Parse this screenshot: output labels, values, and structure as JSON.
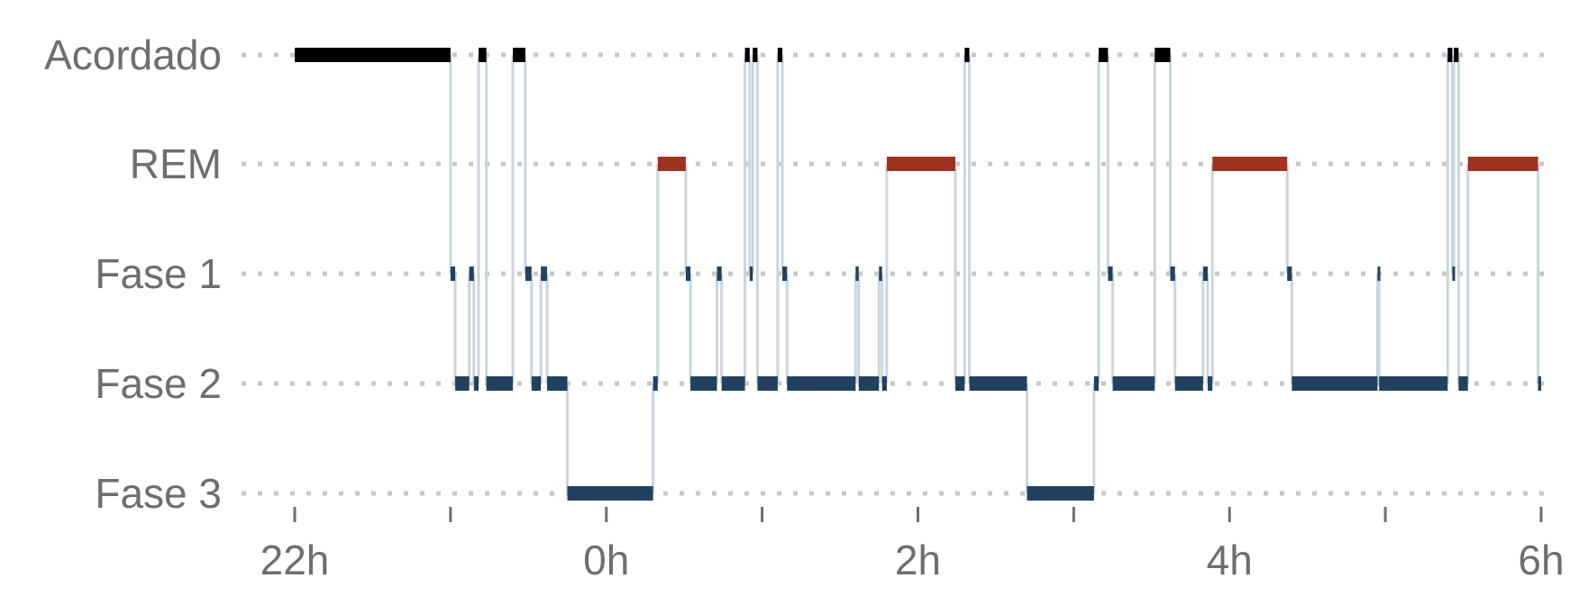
{
  "chart_data": {
    "type": "hypnogram",
    "title": "",
    "xlabel": "",
    "ylabel": "",
    "x_unit": "hours (relative to midnight)",
    "xlim": [
      -2,
      6
    ],
    "x_ticks": [
      {
        "value": -2,
        "label": "22h"
      },
      {
        "value": -1,
        "label": ""
      },
      {
        "value": 0,
        "label": "0h"
      },
      {
        "value": 1,
        "label": ""
      },
      {
        "value": 2,
        "label": "2h"
      },
      {
        "value": 3,
        "label": ""
      },
      {
        "value": 4,
        "label": "4h"
      },
      {
        "value": 5,
        "label": ""
      },
      {
        "value": 6,
        "label": "6h"
      }
    ],
    "stages": [
      "Acordado",
      "REM",
      "Fase 1",
      "Fase 2",
      "Fase 3"
    ],
    "grid": "dotted horizontal",
    "colors": {
      "Acordado": "#000000",
      "REM": "#a03222",
      "Fase 1": "#22415e",
      "Fase 2": "#22415e",
      "Fase 3": "#22415e",
      "transition": "#c9d6df",
      "grid": "#c8c8c8",
      "text": "#6e6e6e"
    },
    "segments": [
      {
        "stage": "Acordado",
        "start": -2.0,
        "end": -1.0
      },
      {
        "stage": "Fase 1",
        "start": -1.0,
        "end": -0.97
      },
      {
        "stage": "Fase 2",
        "start": -0.97,
        "end": -0.88
      },
      {
        "stage": "Fase 1",
        "start": -0.88,
        "end": -0.85
      },
      {
        "stage": "Fase 2",
        "start": -0.85,
        "end": -0.82
      },
      {
        "stage": "Acordado",
        "start": -0.82,
        "end": -0.77
      },
      {
        "stage": "Fase 2",
        "start": -0.77,
        "end": -0.6
      },
      {
        "stage": "Acordado",
        "start": -0.6,
        "end": -0.52
      },
      {
        "stage": "Fase 1",
        "start": -0.52,
        "end": -0.48
      },
      {
        "stage": "Fase 2",
        "start": -0.48,
        "end": -0.42
      },
      {
        "stage": "Fase 1",
        "start": -0.42,
        "end": -0.38
      },
      {
        "stage": "Fase 2",
        "start": -0.38,
        "end": -0.25
      },
      {
        "stage": "Fase 3",
        "start": -0.25,
        "end": 0.3
      },
      {
        "stage": "Fase 2",
        "start": 0.3,
        "end": 0.33
      },
      {
        "stage": "REM",
        "start": 0.33,
        "end": 0.51
      },
      {
        "stage": "Fase 1",
        "start": 0.51,
        "end": 0.54
      },
      {
        "stage": "Fase 2",
        "start": 0.54,
        "end": 0.71
      },
      {
        "stage": "Fase 1",
        "start": 0.71,
        "end": 0.74
      },
      {
        "stage": "Fase 2",
        "start": 0.74,
        "end": 0.89
      },
      {
        "stage": "Acordado",
        "start": 0.89,
        "end": 0.92
      },
      {
        "stage": "Fase 1",
        "start": 0.92,
        "end": 0.94
      },
      {
        "stage": "Acordado",
        "start": 0.94,
        "end": 0.97
      },
      {
        "stage": "Fase 2",
        "start": 0.97,
        "end": 1.1
      },
      {
        "stage": "Acordado",
        "start": 1.1,
        "end": 1.13
      },
      {
        "stage": "Fase 1",
        "start": 1.13,
        "end": 1.16
      },
      {
        "stage": "Fase 2",
        "start": 1.16,
        "end": 1.6
      },
      {
        "stage": "Fase 1",
        "start": 1.6,
        "end": 1.62
      },
      {
        "stage": "Fase 2",
        "start": 1.62,
        "end": 1.75
      },
      {
        "stage": "Fase 1",
        "start": 1.75,
        "end": 1.77
      },
      {
        "stage": "Fase 2",
        "start": 1.77,
        "end": 1.8
      },
      {
        "stage": "REM",
        "start": 1.8,
        "end": 2.24
      },
      {
        "stage": "Fase 2",
        "start": 2.24,
        "end": 2.3
      },
      {
        "stage": "Acordado",
        "start": 2.3,
        "end": 2.33
      },
      {
        "stage": "Fase 2",
        "start": 2.33,
        "end": 2.7
      },
      {
        "stage": "Fase 3",
        "start": 2.7,
        "end": 3.13
      },
      {
        "stage": "Fase 2",
        "start": 3.13,
        "end": 3.16
      },
      {
        "stage": "Acordado",
        "start": 3.16,
        "end": 3.22
      },
      {
        "stage": "Fase 1",
        "start": 3.22,
        "end": 3.25
      },
      {
        "stage": "Fase 2",
        "start": 3.25,
        "end": 3.52
      },
      {
        "stage": "Acordado",
        "start": 3.52,
        "end": 3.62
      },
      {
        "stage": "Fase 1",
        "start": 3.62,
        "end": 3.65
      },
      {
        "stage": "Fase 2",
        "start": 3.65,
        "end": 3.83
      },
      {
        "stage": "Fase 1",
        "start": 3.83,
        "end": 3.86
      },
      {
        "stage": "Fase 2",
        "start": 3.86,
        "end": 3.89
      },
      {
        "stage": "REM",
        "start": 3.89,
        "end": 4.37
      },
      {
        "stage": "Fase 1",
        "start": 4.37,
        "end": 4.4
      },
      {
        "stage": "Fase 2",
        "start": 4.4,
        "end": 4.95
      },
      {
        "stage": "Fase 1",
        "start": 4.95,
        "end": 4.96
      },
      {
        "stage": "Fase 2",
        "start": 4.96,
        "end": 5.4
      },
      {
        "stage": "Acordado",
        "start": 5.4,
        "end": 5.43
      },
      {
        "stage": "Fase 1",
        "start": 5.43,
        "end": 5.44
      },
      {
        "stage": "Acordado",
        "start": 5.44,
        "end": 5.47
      },
      {
        "stage": "Fase 2",
        "start": 5.47,
        "end": 5.53
      },
      {
        "stage": "REM",
        "start": 5.53,
        "end": 5.98
      },
      {
        "stage": "Fase 2",
        "start": 5.98,
        "end": 6.0
      }
    ]
  }
}
